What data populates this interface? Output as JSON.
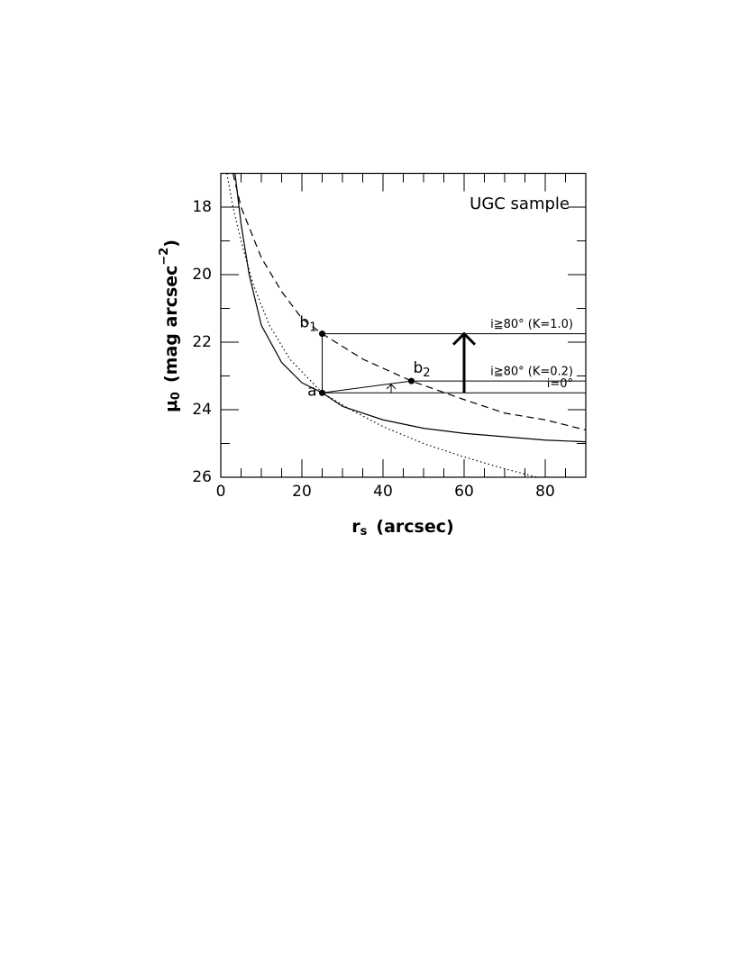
{
  "chart_data": {
    "type": "line",
    "annotation": "UGC sample",
    "x_label": {
      "text": "r",
      "sub": "s",
      "rest": "(arcsec)"
    },
    "y_label": {
      "text": "μ",
      "sub": "0",
      "rest": "(mag  arcsec",
      "sup": "−2",
      "end": ")"
    },
    "xlim": [
      0,
      90
    ],
    "ylim": [
      26,
      17
    ],
    "xticks": [
      0,
      20,
      40,
      60,
      80
    ],
    "yticks": [
      18,
      20,
      22,
      24,
      26
    ],
    "xminorticks": [
      5,
      10,
      15,
      25,
      30,
      35,
      45,
      50,
      55,
      65,
      70,
      75,
      85
    ],
    "yminorticks": [
      17,
      19,
      21,
      23,
      25
    ],
    "series": [
      {
        "style": "solid",
        "color": "#000000",
        "x": [
          3.5,
          5,
          7,
          10,
          15,
          20,
          25,
          30,
          40,
          50,
          60,
          70,
          80,
          90
        ],
        "values": [
          17,
          18.5,
          20,
          21.5,
          22.6,
          23.2,
          23.5,
          23.9,
          24.3,
          24.55,
          24.7,
          24.8,
          24.9,
          24.95
        ]
      },
      {
        "style": "dotted",
        "color": "#000000",
        "x": [
          1.5,
          3,
          5,
          8,
          12,
          17,
          25,
          32,
          40,
          50,
          60,
          70,
          78
        ],
        "values": [
          17,
          18,
          19,
          20.3,
          21.5,
          22.5,
          23.5,
          24,
          24.5,
          25,
          25.4,
          25.75,
          26
        ]
      },
      {
        "style": "dashed",
        "color": "#000000",
        "x": [
          3,
          5,
          10,
          15,
          20,
          25,
          35,
          47,
          60,
          70,
          80,
          90
        ],
        "values": [
          17,
          18,
          19.5,
          20.5,
          21.3,
          21.75,
          22.5,
          23.15,
          23.7,
          24.1,
          24.3,
          24.6
        ]
      }
    ],
    "hlines": [
      {
        "y": 21.75,
        "from": 25,
        "to": 90,
        "label": "i≧80°  (K=1.0)"
      },
      {
        "y": 23.15,
        "from": 47,
        "to": 90,
        "label": "i≧80°  (K=0.2)"
      },
      {
        "y": 23.5,
        "from": 25,
        "to": 90,
        "label": "i=0°"
      }
    ],
    "segments": [
      {
        "x": [
          25,
          25
        ],
        "y": [
          23.5,
          21.75
        ]
      },
      {
        "x": [
          25,
          47
        ],
        "y": [
          23.5,
          23.15
        ]
      }
    ],
    "arrows": [
      {
        "x": 60,
        "from": 23.5,
        "to": 21.75,
        "width": 3
      },
      {
        "x": 42,
        "from": 23.5,
        "to": 23.25,
        "width": 1
      }
    ],
    "points": [
      {
        "x": 25,
        "y": 23.5,
        "label": "a"
      },
      {
        "x": 25,
        "y": 21.75,
        "label": "b",
        "sub": "1"
      },
      {
        "x": 47,
        "y": 23.15,
        "label": "b",
        "sub": "2"
      }
    ]
  }
}
